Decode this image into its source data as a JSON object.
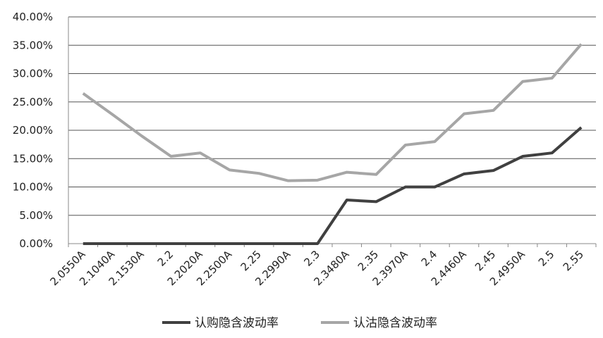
{
  "chart_data": {
    "type": "line",
    "categories": [
      "2.0550A",
      "2.1040A",
      "2.1530A",
      "2.2",
      "2.2020A",
      "2.2500A",
      "2.25",
      "2.2990A",
      "2.3",
      "2.3480A",
      "2.35",
      "2.3970A",
      "2.4",
      "2.4460A",
      "2.45",
      "2.4950A",
      "2.5",
      "2.55"
    ],
    "series": [
      {
        "name": "认购隐含波动率",
        "color": "#404040",
        "values": [
          0,
          0,
          0,
          0,
          0,
          0,
          0,
          0,
          0,
          7.7,
          7.4,
          10.0,
          10.0,
          12.3,
          12.9,
          15.4,
          16.0,
          20.5
        ]
      },
      {
        "name": "认沽隐含波动率",
        "color": "#a6a6a6",
        "values": [
          26.5,
          22.8,
          19.0,
          15.4,
          16.0,
          13.0,
          12.4,
          11.1,
          11.2,
          12.6,
          12.2,
          17.4,
          18.0,
          22.9,
          23.5,
          28.6,
          29.2,
          35.2
        ]
      }
    ],
    "ylim": [
      0,
      40
    ],
    "yticks": [
      {
        "value": 0,
        "label": "0.00%"
      },
      {
        "value": 5,
        "label": "5.00%"
      },
      {
        "value": 10,
        "label": "10.00%"
      },
      {
        "value": 15,
        "label": "15.00%"
      },
      {
        "value": 20,
        "label": "20.00%"
      },
      {
        "value": 25,
        "label": "25.00%"
      },
      {
        "value": 30,
        "label": "30.00%"
      },
      {
        "value": 35,
        "label": "35.00%"
      },
      {
        "value": 40,
        "label": "40.00%"
      }
    ],
    "grid": true,
    "legend": "bottom"
  }
}
